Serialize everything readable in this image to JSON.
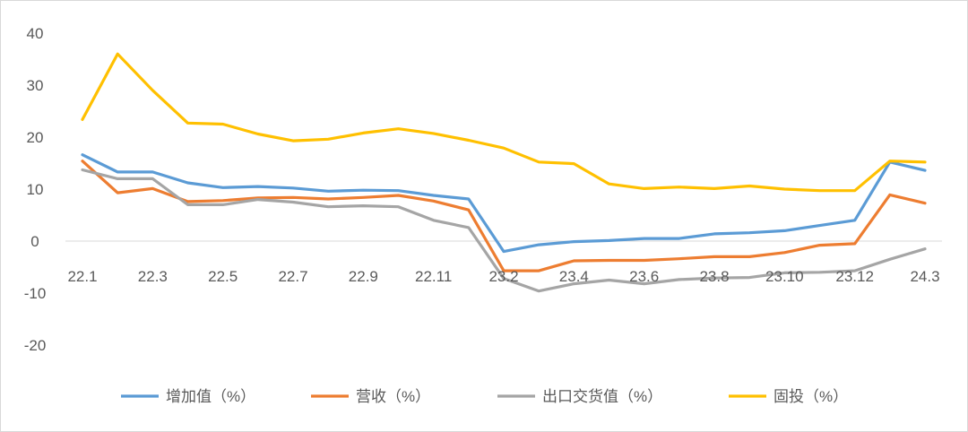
{
  "chart_data": {
    "type": "line",
    "title": "",
    "xlabel": "",
    "ylabel": "",
    "ylim": [
      -20,
      40
    ],
    "yticks": [
      40,
      30,
      20,
      10,
      0,
      -10,
      -20
    ],
    "grid": false,
    "legend_position": "bottom",
    "x": [
      "22.1",
      "22.2",
      "22.3",
      "22.4",
      "22.5",
      "22.6",
      "22.7",
      "22.8",
      "22.9",
      "22.10",
      "22.11",
      "22.12",
      "23.2",
      "23.3",
      "23.4",
      "23.5",
      "23.6",
      "23.7",
      "23.8",
      "23.9",
      "23.10",
      "23.11",
      "23.12",
      "24.1",
      "24.3"
    ],
    "x_tick_labels": [
      "22.1",
      "22.3",
      "22.5",
      "22.7",
      "22.9",
      "22.11",
      "23.2",
      "23.4",
      "23.6",
      "23.8",
      "23.10",
      "23.12",
      "24.3"
    ],
    "series": [
      {
        "name": "增加值（%）",
        "color": "#5B9BD5",
        "values": [
          16.6,
          13.3,
          13.3,
          11.2,
          10.3,
          10.5,
          10.2,
          9.6,
          9.8,
          9.7,
          8.8,
          8.1,
          -2.0,
          -0.7,
          -0.1,
          0.1,
          0.5,
          0.5,
          1.4,
          1.6,
          2.0,
          3.0,
          4.0,
          15.2,
          13.6
        ]
      },
      {
        "name": "营收（%）",
        "color": "#ED7D31",
        "values": [
          15.4,
          9.3,
          10.1,
          7.6,
          7.8,
          8.3,
          8.4,
          8.1,
          8.4,
          8.8,
          7.7,
          6.0,
          -5.7,
          -5.7,
          -3.8,
          -3.7,
          -3.7,
          -3.4,
          -3.0,
          -3.0,
          -2.2,
          -0.8,
          -0.5,
          8.9,
          7.3
        ]
      },
      {
        "name": "出口交货值（%）",
        "color": "#A5A5A5",
        "values": [
          13.7,
          12.0,
          12.0,
          7.0,
          7.0,
          8.0,
          7.5,
          6.6,
          6.8,
          6.6,
          4.0,
          2.6,
          -7.2,
          -9.6,
          -8.2,
          -7.5,
          -8.2,
          -7.4,
          -7.1,
          -7.0,
          -6.1,
          -6.0,
          -5.7,
          -3.5,
          -1.5
        ]
      },
      {
        "name": "固投（%）",
        "color": "#FFC000",
        "values": [
          23.4,
          36.0,
          29.0,
          22.7,
          22.5,
          20.6,
          19.3,
          19.6,
          20.8,
          21.6,
          20.7,
          19.4,
          17.9,
          15.2,
          14.9,
          11.0,
          10.1,
          10.4,
          10.1,
          10.6,
          10.0,
          9.7,
          9.7,
          15.4,
          15.2
        ]
      }
    ]
  }
}
